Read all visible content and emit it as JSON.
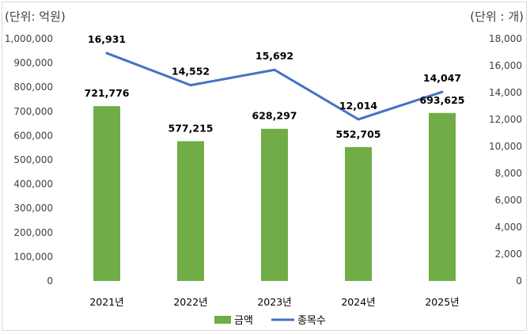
{
  "chart_data": {
    "type": "bar",
    "title": "",
    "categories": [
      "2021년",
      "2022년",
      "2023년",
      "2024년",
      "2025년"
    ],
    "y_left_unit": "(단위: 억원)",
    "y_right_unit": "(단위 : 개)",
    "y_left_lim": [
      0,
      1000000
    ],
    "y_right_lim": [
      0,
      18000
    ],
    "y_left_ticks": [
      "0",
      "100,000",
      "200,000",
      "300,000",
      "400,000",
      "500,000",
      "600,000",
      "700,000",
      "800,000",
      "900,000",
      "1,000,000"
    ],
    "y_right_ticks": [
      "0",
      "2,000",
      "4,000",
      "6,000",
      "8,000",
      "10,000",
      "12,000",
      "14,000",
      "16,000",
      "18,000"
    ],
    "grid": false,
    "legend_position": "bottom",
    "series": [
      {
        "name": "금액",
        "type": "bar",
        "axis": "left",
        "color": "#70ad47",
        "values": [
          721776,
          577215,
          628297,
          552705,
          693625
        ],
        "labels": [
          "721,776",
          "577,215",
          "628,297",
          "552,705",
          "693,625"
        ]
      },
      {
        "name": "종목수",
        "type": "line",
        "axis": "right",
        "color": "#4472c4",
        "values": [
          16931,
          14552,
          15692,
          12014,
          14047
        ],
        "labels": [
          "16,931",
          "14,552",
          "15,692",
          "12,014",
          "14,047"
        ]
      }
    ]
  }
}
